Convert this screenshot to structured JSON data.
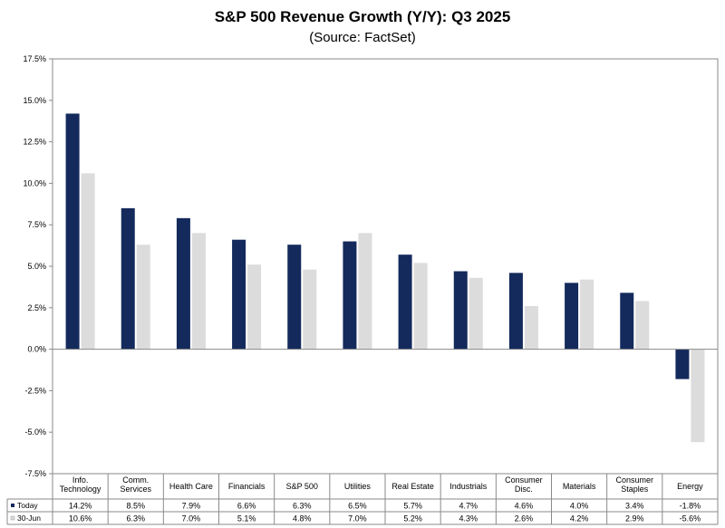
{
  "chart_data": {
    "type": "bar",
    "title": "S&P 500 Revenue Growth (Y/Y): Q3 2025",
    "subtitle": "(Source: FactSet)",
    "categories": [
      [
        "Info.",
        "Technology"
      ],
      [
        "Comm.",
        "Services"
      ],
      [
        "Health Care"
      ],
      [
        "Financials"
      ],
      [
        "S&P 500"
      ],
      [
        "Utilities"
      ],
      [
        "Real Estate"
      ],
      [
        "Industrials"
      ],
      [
        "Consumer",
        "Disc."
      ],
      [
        "Materials"
      ],
      [
        "Consumer",
        "Staples"
      ],
      [
        "Energy"
      ]
    ],
    "series": [
      {
        "name": "Today",
        "color": "#142a5c",
        "values": [
          14.2,
          8.5,
          7.9,
          6.6,
          6.3,
          6.5,
          5.7,
          4.7,
          4.6,
          4.0,
          3.4,
          -1.8
        ],
        "labels": [
          "14.2%",
          "8.5%",
          "7.9%",
          "6.6%",
          "6.3%",
          "6.5%",
          "5.7%",
          "4.7%",
          "4.6%",
          "4.0%",
          "3.4%",
          "-1.8%"
        ]
      },
      {
        "name": "30-Jun",
        "color": "#dcdcdc",
        "values": [
          10.6,
          6.3,
          7.0,
          5.1,
          4.8,
          7.0,
          5.2,
          4.3,
          2.6,
          4.2,
          2.9,
          -5.6
        ],
        "labels": [
          "10.6%",
          "6.3%",
          "7.0%",
          "5.1%",
          "4.8%",
          "7.0%",
          "5.2%",
          "4.3%",
          "2.6%",
          "4.2%",
          "2.9%",
          "-5.6%"
        ]
      }
    ],
    "ylim": [
      -7.5,
      17.5
    ],
    "yticks": [
      17.5,
      15.0,
      12.5,
      10.0,
      7.5,
      5.0,
      2.5,
      0.0,
      -2.5,
      -5.0,
      -7.5
    ],
    "ytick_labels": [
      "17.5%",
      "15.0%",
      "12.5%",
      "10.0%",
      "7.5%",
      "5.0%",
      "2.5%",
      "0.0%",
      "-2.5%",
      "-5.0%",
      "-7.5%"
    ],
    "grid": false,
    "legend": "data-table"
  }
}
